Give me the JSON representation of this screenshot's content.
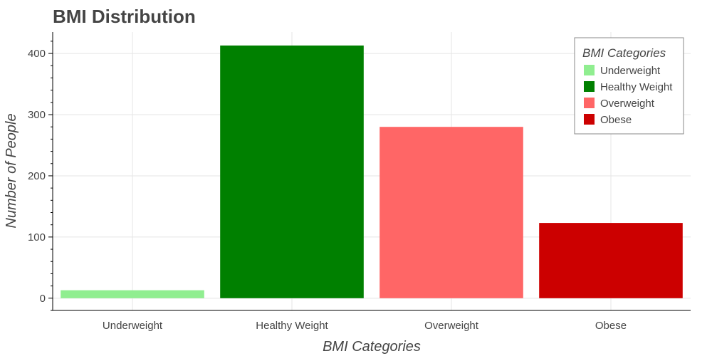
{
  "chart_data": {
    "type": "bar",
    "title": "BMI Distribution",
    "xlabel": "BMI Categories",
    "ylabel": "Number of People",
    "categories": [
      "Underweight",
      "Healthy Weight",
      "Overweight",
      "Obese"
    ],
    "values": [
      13,
      413,
      280,
      123
    ],
    "colors": [
      "#90ee90",
      "#008000",
      "#ff6666",
      "#cc0000"
    ],
    "ylim": [
      -20,
      435
    ],
    "yticks": [
      0,
      100,
      200,
      300,
      400
    ],
    "grid": true,
    "legend": {
      "title": "BMI Categories",
      "placement": "top-right",
      "entries": [
        "Underweight",
        "Healthy Weight",
        "Overweight",
        "Obese"
      ]
    }
  }
}
